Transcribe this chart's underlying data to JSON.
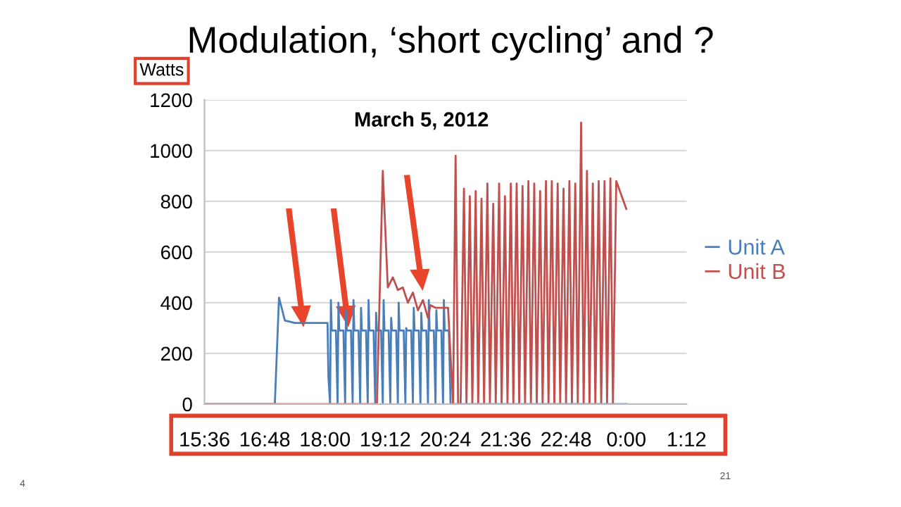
{
  "chart_data": {
    "type": "line",
    "title": "Modulation, ‘short cycling’ and ?",
    "ylabel": "Watts",
    "annotations": [
      "March 5, 2012",
      "4",
      "21"
    ],
    "series": [
      {
        "name": "Unit A",
        "color": "#4a7ebb",
        "x": [
          "2012-03-05T15:36",
          "2012-03-05T17:00",
          "2012-03-05T17:05",
          "2012-03-05T17:12",
          "2012-03-05T17:24",
          "2012-03-05T18:03",
          "2012-03-05T18:04",
          "2012-03-05T18:06",
          "2012-03-05T18:07",
          "2012-03-05T18:08",
          "2012-03-05T18:13",
          "2012-03-05T18:15",
          "2012-03-05T18:16",
          "2012-03-05T18:17",
          "2012-03-05T18:22",
          "2012-03-05T18:24",
          "2012-03-05T18:25",
          "2012-03-05T18:26",
          "2012-03-05T18:31",
          "2012-03-05T18:33",
          "2012-03-05T18:34",
          "2012-03-05T18:35",
          "2012-03-05T18:40",
          "2012-03-05T18:42",
          "2012-03-05T18:43",
          "2012-03-05T18:44",
          "2012-03-05T18:49",
          "2012-03-05T18:51",
          "2012-03-05T18:52",
          "2012-03-05T18:53",
          "2012-03-05T18:58",
          "2012-03-05T19:00",
          "2012-03-05T19:01",
          "2012-03-05T19:02",
          "2012-03-05T19:07",
          "2012-03-05T19:09",
          "2012-03-05T19:10",
          "2012-03-05T19:11",
          "2012-03-05T19:16",
          "2012-03-05T19:18",
          "2012-03-05T19:19",
          "2012-03-05T19:20",
          "2012-03-05T19:25",
          "2012-03-05T19:27",
          "2012-03-05T19:28",
          "2012-03-05T19:29",
          "2012-03-05T19:34",
          "2012-03-05T19:36",
          "2012-03-05T19:37",
          "2012-03-05T19:38",
          "2012-03-05T19:43",
          "2012-03-05T19:45",
          "2012-03-05T19:46",
          "2012-03-05T19:47",
          "2012-03-05T19:52",
          "2012-03-05T19:54",
          "2012-03-05T19:55",
          "2012-03-05T19:56",
          "2012-03-05T20:01",
          "2012-03-05T20:03",
          "2012-03-05T20:04",
          "2012-03-05T20:05",
          "2012-03-05T20:10",
          "2012-03-05T20:12",
          "2012-03-05T20:13",
          "2012-03-05T20:14",
          "2012-03-05T20:19",
          "2012-03-05T20:21",
          "2012-03-05T20:22",
          "2012-03-05T20:23",
          "2012-03-05T20:28",
          "2012-03-05T20:30",
          "2012-03-06T00:00"
        ],
        "values": [
          0,
          0,
          420,
          330,
          320,
          320,
          110,
          0,
          410,
          290,
          290,
          0,
          400,
          290,
          290,
          0,
          370,
          290,
          290,
          0,
          410,
          290,
          290,
          0,
          380,
          290,
          290,
          0,
          410,
          290,
          290,
          0,
          360,
          290,
          290,
          0,
          410,
          290,
          290,
          0,
          340,
          290,
          290,
          0,
          400,
          290,
          290,
          0,
          300,
          290,
          290,
          0,
          380,
          290,
          290,
          0,
          360,
          290,
          290,
          0,
          410,
          290,
          290,
          0,
          370,
          290,
          290,
          0,
          410,
          290,
          290,
          0,
          0
        ]
      },
      {
        "name": "Unit B",
        "color": "#c0504d",
        "x": [
          "2012-03-05T15:36",
          "2012-03-05T19:02",
          "2012-03-05T19:09",
          "2012-03-05T19:15",
          "2012-03-05T19:21",
          "2012-03-05T19:27",
          "2012-03-05T19:33",
          "2012-03-05T19:39",
          "2012-03-05T19:45",
          "2012-03-05T19:51",
          "2012-03-05T19:57",
          "2012-03-05T20:03",
          "2012-03-05T20:06",
          "2012-03-05T20:12",
          "2012-03-05T20:27",
          "2012-03-05T20:33",
          "2012-03-05T20:36",
          "2012-03-05T20:39",
          "2012-03-05T20:42",
          "2012-03-05T20:46",
          "2012-03-05T20:49",
          "2012-03-05T20:53",
          "2012-03-05T20:56",
          "2012-03-05T21:00",
          "2012-03-05T21:03",
          "2012-03-05T21:07",
          "2012-03-05T21:10",
          "2012-03-05T21:14",
          "2012-03-05T21:17",
          "2012-03-05T21:21",
          "2012-03-05T21:24",
          "2012-03-05T21:28",
          "2012-03-05T21:31",
          "2012-03-05T21:35",
          "2012-03-05T21:38",
          "2012-03-05T21:42",
          "2012-03-05T21:45",
          "2012-03-05T21:49",
          "2012-03-05T21:52",
          "2012-03-05T21:56",
          "2012-03-05T21:59",
          "2012-03-05T22:03",
          "2012-03-05T22:06",
          "2012-03-05T22:10",
          "2012-03-05T22:13",
          "2012-03-05T22:17",
          "2012-03-05T22:20",
          "2012-03-05T22:24",
          "2012-03-05T22:27",
          "2012-03-05T22:31",
          "2012-03-05T22:34",
          "2012-03-05T22:38",
          "2012-03-05T22:41",
          "2012-03-05T22:45",
          "2012-03-05T22:48",
          "2012-03-05T22:52",
          "2012-03-05T22:55",
          "2012-03-05T22:59",
          "2012-03-05T23:02",
          "2012-03-05T23:06",
          "2012-03-05T23:09",
          "2012-03-05T23:13",
          "2012-03-05T23:16",
          "2012-03-05T23:20",
          "2012-03-05T23:23",
          "2012-03-05T23:27",
          "2012-03-05T23:30",
          "2012-03-05T23:34",
          "2012-03-05T23:37",
          "2012-03-05T23:41",
          "2012-03-05T23:44",
          "2012-03-05T23:48",
          "2012-03-06T00:00"
        ],
        "values": [
          0,
          0,
          920,
          460,
          500,
          450,
          460,
          400,
          440,
          370,
          410,
          340,
          390,
          380,
          380,
          0,
          980,
          0,
          0,
          850,
          0,
          820,
          0,
          840,
          0,
          810,
          0,
          870,
          0,
          790,
          0,
          870,
          0,
          820,
          0,
          870,
          0,
          870,
          0,
          860,
          0,
          880,
          0,
          870,
          0,
          840,
          0,
          880,
          0,
          880,
          0,
          870,
          0,
          850,
          0,
          880,
          0,
          870,
          0,
          1110,
          0,
          920,
          0,
          870,
          0,
          880,
          0,
          880,
          0,
          890,
          0,
          880,
          770
        ]
      }
    ],
    "xlim": [
      "2012-03-05T15:36",
      "2012-03-06T01:12"
    ],
    "xticks": [
      {
        "value": "2012-03-05T15:36",
        "label": "15:36"
      },
      {
        "value": "2012-03-05T16:48",
        "label": "16:48"
      },
      {
        "value": "2012-03-05T18:00",
        "label": "18:00"
      },
      {
        "value": "2012-03-05T19:12",
        "label": "19:12"
      },
      {
        "value": "2012-03-05T20:24",
        "label": "20:24"
      },
      {
        "value": "2012-03-05T21:36",
        "label": "21:36"
      },
      {
        "value": "2012-03-05T22:48",
        "label": "22:48"
      },
      {
        "value": "2012-03-06T00:00",
        "label": "0:00"
      },
      {
        "value": "2012-03-06T01:12",
        "label": "1:12"
      }
    ],
    "ylim": [
      0,
      1200
    ],
    "yticks": [
      0,
      200,
      400,
      600,
      800,
      1000,
      1200
    ],
    "grid": "y",
    "legend": "right",
    "marker": "none",
    "line_style": "solid"
  }
}
